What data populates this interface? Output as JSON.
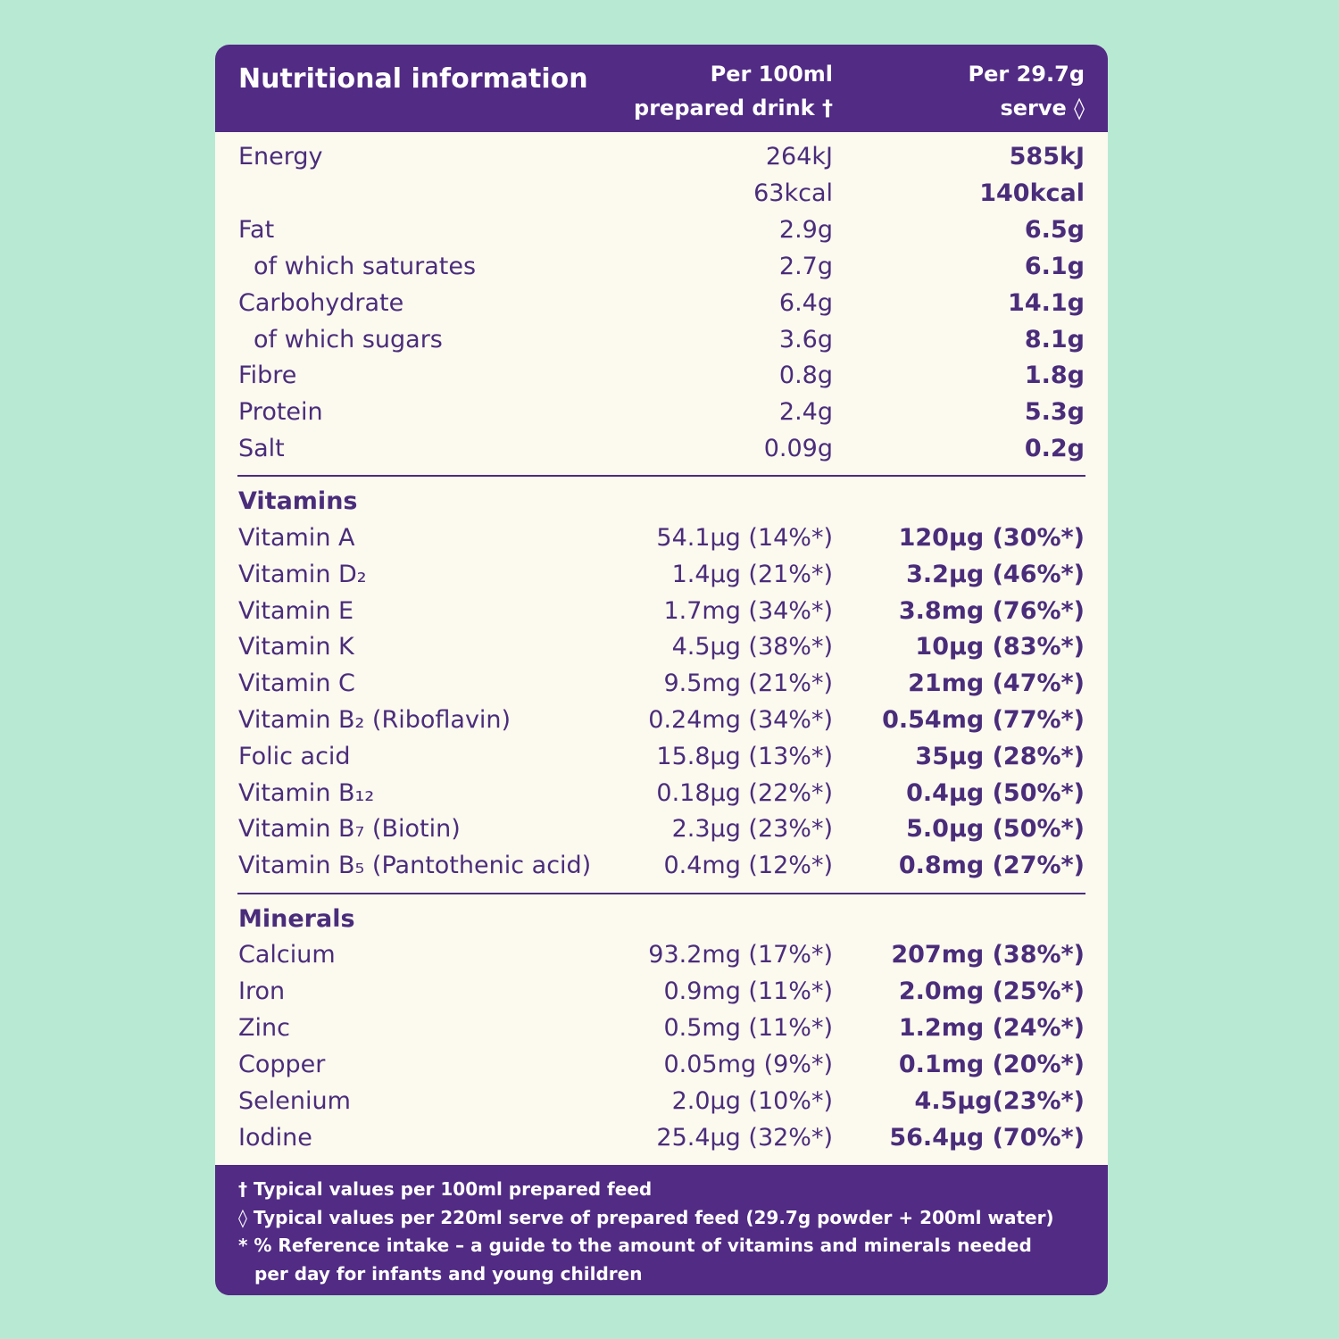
{
  "header": {
    "title": "Nutritional information",
    "col1": [
      "Per 100ml",
      "prepared drink †"
    ],
    "col2": [
      "Per 29.7g",
      "serve ◊"
    ]
  },
  "nutrients": [
    {
      "name": "Energy",
      "per100ml": "264kJ",
      "perServe": "585kJ"
    },
    {
      "per100ml": "63kcal",
      "perServe": "140kcal"
    },
    {
      "name": "Fat",
      "per100ml": "2.9g",
      "perServe": "6.5g"
    },
    {
      "name": "of which saturates",
      "per100ml": "2.7g",
      "perServe": "6.1g",
      "sub": true
    },
    {
      "name": "Carbohydrate",
      "per100ml": "6.4g",
      "perServe": "14.1g"
    },
    {
      "name": "of which sugars",
      "per100ml": "3.6g",
      "perServe": "8.1g",
      "sub": true
    },
    {
      "name": "Fibre",
      "per100ml": "0.8g",
      "perServe": "1.8g"
    },
    {
      "name": "Protein",
      "per100ml": "2.4g",
      "perServe": "5.3g"
    },
    {
      "name": "Salt",
      "per100ml": "0.09g",
      "perServe": "0.2g"
    }
  ],
  "vitamins": {
    "title": "Vitamins",
    "rows": [
      {
        "name": "Vitamin A",
        "per100ml": "54.1µg (14%*)",
        "perServe": "120µg (30%*)"
      },
      {
        "name": "Vitamin D₂",
        "per100ml": "1.4µg (21%*)",
        "perServe": "3.2µg (46%*)"
      },
      {
        "name": "Vitamin E",
        "per100ml": "1.7mg (34%*)",
        "perServe": "3.8mg (76%*)"
      },
      {
        "name": "Vitamin K",
        "per100ml": "4.5µg (38%*)",
        "perServe": "10µg (83%*)"
      },
      {
        "name": "Vitamin C",
        "per100ml": "9.5mg (21%*)",
        "perServe": "21mg (47%*)"
      },
      {
        "name": "Vitamin B₂ (Riboflavin)",
        "per100ml": "0.24mg (34%*)",
        "perServe": "0.54mg (77%*)"
      },
      {
        "name": "Folic acid",
        "per100ml": "15.8µg (13%*)",
        "perServe": "35µg (28%*)"
      },
      {
        "name": "Vitamin B₁₂",
        "per100ml": "0.18µg (22%*)",
        "perServe": "0.4µg (50%*)"
      },
      {
        "name": "Vitamin B₇ (Biotin)",
        "per100ml": "2.3µg (23%*)",
        "perServe": "5.0µg (50%*)"
      },
      {
        "name": "Vitamin B₅ (Pantothenic acid)",
        "per100ml": "0.4mg (12%*)",
        "perServe": "0.8mg (27%*)"
      }
    ]
  },
  "minerals": {
    "title": "Minerals",
    "rows": [
      {
        "name": "Calcium",
        "per100ml": "93.2mg (17%*)",
        "perServe": "207mg (38%*)"
      },
      {
        "name": "Iron",
        "per100ml": "0.9mg (11%*)",
        "perServe": "2.0mg (25%*)"
      },
      {
        "name": "Zinc",
        "per100ml": "0.5mg (11%*)",
        "perServe": "1.2mg (24%*)"
      },
      {
        "name": "Copper",
        "per100ml": "0.05mg (9%*)",
        "perServe": "0.1mg (20%*)"
      },
      {
        "name": "Selenium",
        "per100ml": "2.0µg (10%*)",
        "perServe": "4.5µg(23%*)"
      },
      {
        "name": "Iodine",
        "per100ml": "25.4µg (32%*)",
        "perServe": "56.4µg (70%*)"
      }
    ]
  },
  "footnotes": [
    "† Typical values per 100ml prepared feed",
    "◊ Typical values per 220ml serve of prepared feed (29.7g powder + 200ml water)",
    "* % Reference intake – a guide to the amount of vitamins and minerals needed",
    "per day for infants and young children"
  ]
}
